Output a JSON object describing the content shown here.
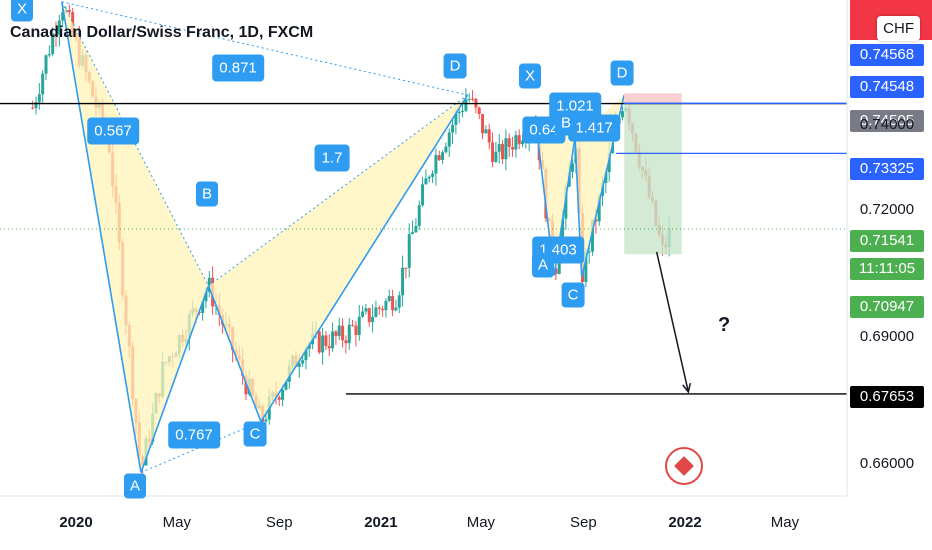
{
  "header": {
    "title": "Canadian Dollar/Swiss Franc, 1D, FXCM",
    "currency_box": "CHF"
  },
  "axis_tags": [
    {
      "label": "0.74568",
      "bg": "#2962ff",
      "fg": "#ffffff"
    },
    {
      "label": "0.74548",
      "bg": "#2962ff",
      "fg": "#ffffff"
    },
    {
      "label": "0.74505",
      "bg": "#787b86",
      "fg": "#ffffff"
    },
    {
      "label": "0.73325",
      "bg": "#2962ff",
      "fg": "#ffffff"
    },
    {
      "label": "0.71541",
      "bg": "#4caf50",
      "fg": "#ffffff"
    },
    {
      "label": "11:11:05",
      "bg": "#4caf50",
      "fg": "#ffffff"
    },
    {
      "label": "0.70947",
      "bg": "#4caf50",
      "fg": "#ffffff"
    },
    {
      "label": "0.67653",
      "bg": "#000000",
      "fg": "#ffffff"
    }
  ],
  "annotations": {
    "question": "?",
    "pattern_points": [
      "X",
      "A",
      "B",
      "C",
      "D"
    ],
    "pattern2_points": [
      "X",
      "A",
      "B",
      "C",
      "D"
    ],
    "ratios": {
      "xb": "0.567",
      "xd": "0.871",
      "bd": "1.7",
      "ac": "0.767"
    },
    "ratios2": {
      "r1": "0.64",
      "r2": "1.021",
      "r3": "1.417",
      "r4": "1.403"
    }
  },
  "colors": {
    "pattern_fill": "#fff3b8",
    "pattern_line": "#2e9cf0",
    "target_fill": "#c8e6c9",
    "stop_fill": "#ffcdd2",
    "accent": "#2962ff"
  },
  "chart_data": {
    "type": "candlestick",
    "title": "Canadian Dollar/Swiss Franc, 1D, FXCM",
    "x_ticks": [
      "2020",
      "May",
      "Sep",
      "2021",
      "May",
      "Sep",
      "2022",
      "May"
    ],
    "y_ticks": [
      "0.74000",
      "0.72000",
      "0.69000",
      "0.66000"
    ],
    "ylim": [
      0.655,
      0.772
    ],
    "pattern_1": {
      "X": [
        "2019-12-15",
        0.769
      ],
      "A": [
        "2020-03-19",
        0.658
      ],
      "B": [
        "2020-06-08",
        0.702
      ],
      "C": [
        "2020-08-10",
        0.67
      ],
      "D": [
        "2021-04-15",
        0.747
      ]
    },
    "pattern_2": {
      "X": [
        "2021-07-05",
        0.742
      ],
      "A": [
        "2021-07-28",
        0.7045
      ],
      "B": [
        "2021-08-22",
        0.737
      ],
      "C": [
        "2021-08-30",
        0.704
      ],
      "D": [
        "2021-10-20",
        0.747
      ]
    },
    "levels": {
      "resistance": 0.745,
      "stop": 0.74505,
      "entry": 0.73325,
      "current": 0.71541,
      "target_box_low": 0.70947,
      "support": 0.67653
    },
    "arrow": {
      "from": [
        "2021-11-28",
        0.71
      ],
      "to": [
        "2022-01-05",
        0.677
      ]
    }
  }
}
